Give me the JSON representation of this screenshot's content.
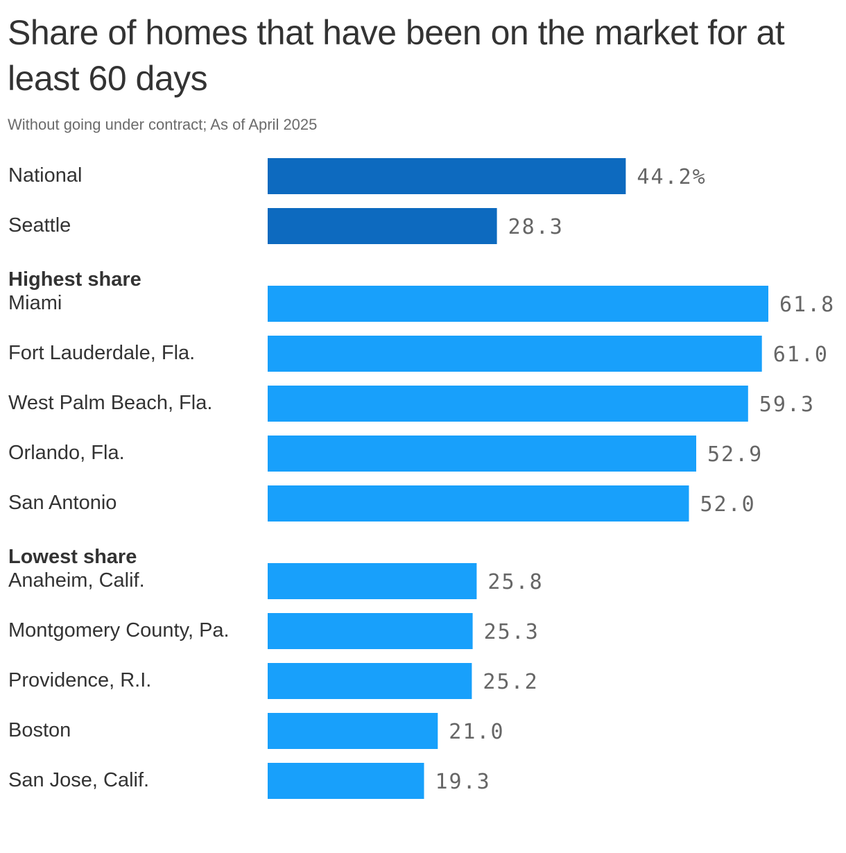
{
  "header": {
    "title": "Share of homes that have been on the market for at least 60 days",
    "subtitle": "Without going under contract; As of April 2025"
  },
  "colors": {
    "dark_bar": "#0d6abf",
    "light_bar": "#18a0fb",
    "text": "#333333",
    "value_text": "#666666"
  },
  "chart_data": {
    "type": "bar",
    "orientation": "horizontal",
    "title": "Share of homes that have been on the market for at least 60 days",
    "subtitle": "Without going under contract; As of April 2025",
    "unit": "%",
    "xlim": [
      0,
      61.8
    ],
    "grid": false,
    "groups": [
      {
        "label": "",
        "color": "#0d6abf",
        "items": [
          {
            "category": "National",
            "value": 44.2,
            "display": "44.2%"
          },
          {
            "category": "Seattle",
            "value": 28.3,
            "display": "28.3"
          }
        ]
      },
      {
        "label": "Highest share",
        "color": "#18a0fb",
        "items": [
          {
            "category": "Miami",
            "value": 61.8,
            "display": "61.8"
          },
          {
            "category": "Fort Lauderdale, Fla.",
            "value": 61.0,
            "display": "61.0"
          },
          {
            "category": "West Palm Beach, Fla.",
            "value": 59.3,
            "display": "59.3"
          },
          {
            "category": "Orlando, Fla.",
            "value": 52.9,
            "display": "52.9"
          },
          {
            "category": "San Antonio",
            "value": 52.0,
            "display": "52.0"
          }
        ]
      },
      {
        "label": "Lowest share",
        "color": "#18a0fb",
        "items": [
          {
            "category": "Anaheim, Calif.",
            "value": 25.8,
            "display": "25.8"
          },
          {
            "category": "Montgomery County, Pa.",
            "value": 25.3,
            "display": "25.3"
          },
          {
            "category": "Providence, R.I.",
            "value": 25.2,
            "display": "25.2"
          },
          {
            "category": "Boston",
            "value": 21.0,
            "display": "21.0"
          },
          {
            "category": "San Jose, Calif.",
            "value": 19.3,
            "display": "19.3"
          }
        ]
      }
    ]
  }
}
